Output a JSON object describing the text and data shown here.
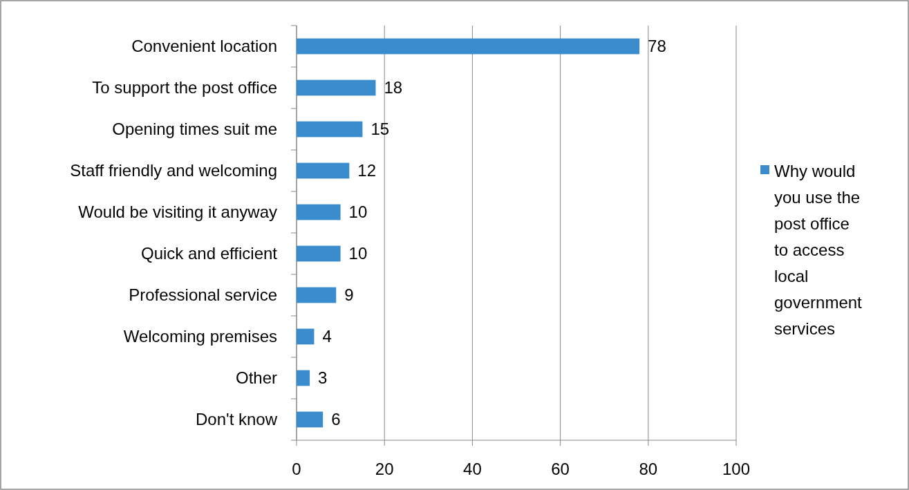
{
  "chart_data": {
    "type": "bar",
    "orientation": "horizontal",
    "categories": [
      "Convenient location",
      "To support the post office",
      "Opening times suit me",
      "Staff friendly and welcoming",
      "Would be visiting it anyway",
      "Quick and efficient",
      "Professional service",
      "Welcoming premises",
      "Other",
      "Don't know"
    ],
    "series": [
      {
        "name": "Why would you use the post office to access local government services",
        "color": "#3a8ccc",
        "values": [
          78,
          18,
          15,
          12,
          10,
          10,
          9,
          4,
          3,
          6
        ]
      }
    ],
    "xlim": [
      0,
      100
    ],
    "xticks": [
      0,
      20,
      40,
      60,
      80,
      100
    ],
    "grid": "x",
    "legend": "right",
    "data_labels": true
  }
}
